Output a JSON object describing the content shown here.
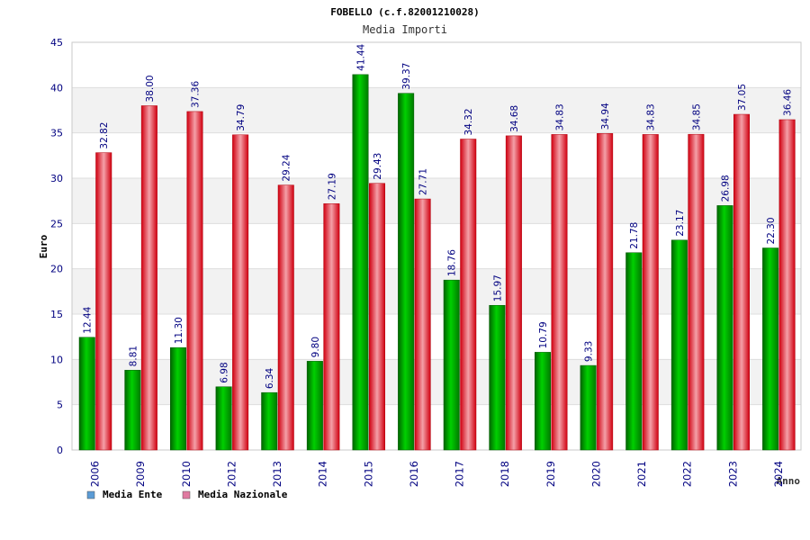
{
  "chart_data": {
    "type": "bar",
    "title": "FOBELLO (c.f.82001210028)",
    "subtitle": "Media Importi",
    "ylabel": "Euro",
    "xlabel": "Anno",
    "ylim": [
      0,
      45
    ],
    "yticks": [
      0,
      5,
      10,
      15,
      20,
      25,
      30,
      35,
      40,
      45
    ],
    "grid": true,
    "legend_position": "bottom-left",
    "categories": [
      "2006",
      "2009",
      "2010",
      "2012",
      "2013",
      "2014",
      "2015",
      "2016",
      "2017",
      "2018",
      "2019",
      "2020",
      "2021",
      "2022",
      "2023",
      "2024"
    ],
    "series": [
      {
        "name": "Media Ente",
        "color": "#00b000",
        "legend_color": "#5b9bd5",
        "values": [
          12.44,
          8.81,
          11.3,
          6.98,
          6.34,
          9.8,
          41.44,
          39.37,
          18.76,
          15.97,
          10.79,
          9.33,
          21.78,
          23.17,
          26.98,
          22.3
        ],
        "labels": [
          "12.44",
          "8.81",
          "11.30",
          "6.98",
          "6.34",
          "9.80",
          "41.44",
          "39.37",
          "18.76",
          "15.97",
          "10.79",
          "9.33",
          "21.78",
          "23.17",
          "26.98",
          "22.30"
        ]
      },
      {
        "name": "Media Nazionale",
        "color": "#e8101a",
        "legend_color": "#e07aa0",
        "values": [
          32.82,
          38.0,
          37.36,
          34.79,
          29.24,
          27.19,
          29.43,
          27.71,
          34.32,
          34.68,
          34.83,
          34.94,
          34.83,
          34.85,
          37.05,
          36.46
        ],
        "labels": [
          "32.82",
          "38.00",
          "37.36",
          "34.79",
          "29.24",
          "27.19",
          "29.43",
          "27.71",
          "34.32",
          "34.68",
          "34.83",
          "34.94",
          "34.83",
          "34.85",
          "37.05",
          "36.46"
        ]
      }
    ]
  }
}
